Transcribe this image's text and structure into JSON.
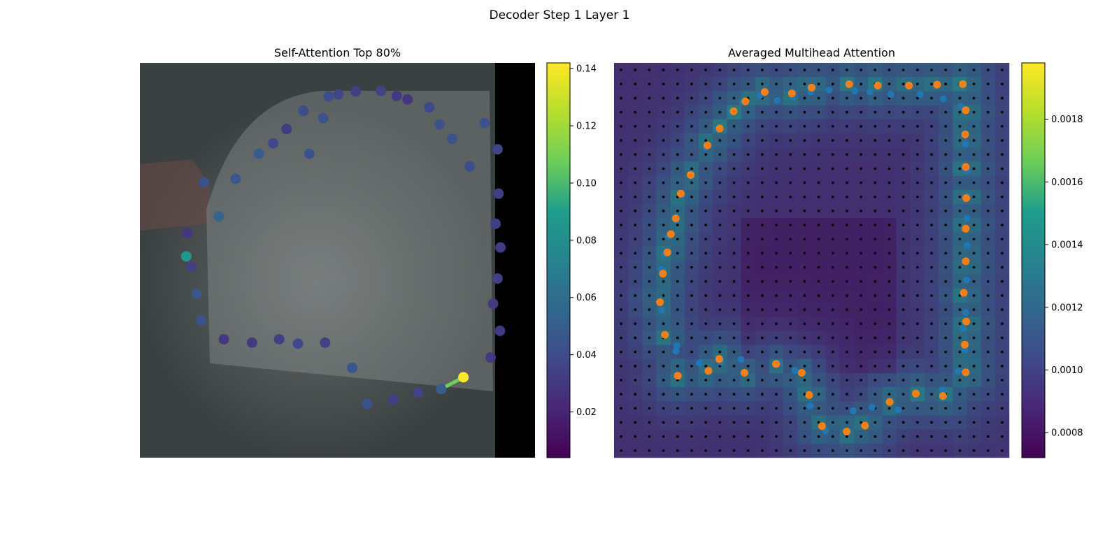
{
  "suptitle": "Decoder Step 1 Layer 1",
  "panels": {
    "left_title": "Self-Attention Top 80%",
    "right_title": "Averaged Multihead Attention"
  },
  "colors": {
    "viridis_stops": [
      "#440154",
      "#482777",
      "#3f4a8a",
      "#31678e",
      "#26838f",
      "#1f9d8a",
      "#6cce5a",
      "#b6de2b",
      "#fee825"
    ],
    "orange_point": "#ff7f0e",
    "blue_point": "#1f77b4",
    "photo_bg": "#3b4140",
    "black_strip": "#000000"
  },
  "chart_data": [
    {
      "type": "scatter",
      "title": "Self-Attention Top 80%",
      "xlim": [
        0,
        800
      ],
      "ylim": [
        800,
        0
      ],
      "colorbar": {
        "min": 0.004,
        "max": 0.142,
        "ticks": [
          0.02,
          0.04,
          0.06,
          0.08,
          0.1,
          0.12,
          0.14
        ],
        "tick_labels": [
          "0.02",
          "0.04",
          "0.06",
          "0.08",
          "0.10",
          "0.12",
          "0.14"
        ]
      },
      "points": [
        {
          "x": 94,
          "y": 392,
          "v": 0.087
        },
        {
          "x": 130,
          "y": 242,
          "v": 0.043
        },
        {
          "x": 160,
          "y": 311,
          "v": 0.054
        },
        {
          "x": 194,
          "y": 235,
          "v": 0.0465
        },
        {
          "x": 241,
          "y": 184,
          "v": 0.0495
        },
        {
          "x": 270,
          "y": 163,
          "v": 0.0375
        },
        {
          "x": 297,
          "y": 134,
          "v": 0.0318
        },
        {
          "x": 331,
          "y": 97,
          "v": 0.0405
        },
        {
          "x": 343,
          "y": 184,
          "v": 0.0432
        },
        {
          "x": 371,
          "y": 112,
          "v": 0.0435
        },
        {
          "x": 382,
          "y": 68,
          "v": 0.0408
        },
        {
          "x": 402,
          "y": 64,
          "v": 0.0365
        },
        {
          "x": 437,
          "y": 58,
          "v": 0.0335
        },
        {
          "x": 488,
          "y": 57,
          "v": 0.0355
        },
        {
          "x": 520,
          "y": 67,
          "v": 0.0302
        },
        {
          "x": 542,
          "y": 74,
          "v": 0.029
        },
        {
          "x": 586,
          "y": 90,
          "v": 0.0382
        },
        {
          "x": 607,
          "y": 125,
          "v": 0.043
        },
        {
          "x": 632,
          "y": 154,
          "v": 0.044
        },
        {
          "x": 698,
          "y": 122,
          "v": 0.0427
        },
        {
          "x": 668,
          "y": 210,
          "v": 0.0398
        },
        {
          "x": 724,
          "y": 175,
          "v": 0.0362
        },
        {
          "x": 726,
          "y": 265,
          "v": 0.0325
        },
        {
          "x": 720,
          "y": 326,
          "v": 0.0337
        },
        {
          "x": 730,
          "y": 374,
          "v": 0.0308
        },
        {
          "x": 724,
          "y": 437,
          "v": 0.033
        },
        {
          "x": 715,
          "y": 488,
          "v": 0.0313
        },
        {
          "x": 729,
          "y": 543,
          "v": 0.0312
        },
        {
          "x": 710,
          "y": 597,
          "v": 0.03
        },
        {
          "x": 655,
          "y": 637,
          "v": 0.142
        },
        {
          "x": 610,
          "y": 661,
          "v": 0.05
        },
        {
          "x": 563,
          "y": 668,
          "v": 0.035
        },
        {
          "x": 513,
          "y": 682,
          "v": 0.0335
        },
        {
          "x": 460,
          "y": 691,
          "v": 0.0445
        },
        {
          "x": 430,
          "y": 618,
          "v": 0.0456
        },
        {
          "x": 375,
          "y": 567,
          "v": 0.0345
        },
        {
          "x": 320,
          "y": 569,
          "v": 0.0378
        },
        {
          "x": 282,
          "y": 560,
          "v": 0.033
        },
        {
          "x": 227,
          "y": 567,
          "v": 0.0312
        },
        {
          "x": 170,
          "y": 560,
          "v": 0.0296
        },
        {
          "x": 124,
          "y": 522,
          "v": 0.044
        },
        {
          "x": 115,
          "y": 468,
          "v": 0.0463
        },
        {
          "x": 104,
          "y": 413,
          "v": 0.033
        },
        {
          "x": 96,
          "y": 345,
          "v": 0.0288
        }
      ],
      "line": {
        "from": [
          610,
          661
        ],
        "to": [
          655,
          637
        ],
        "v": 0.108
      }
    },
    {
      "type": "heatmap",
      "title": "Averaged Multihead Attention",
      "grid": {
        "rows": 28,
        "cols": 28
      },
      "colorbar": {
        "min": 0.00072,
        "max": 0.00198,
        "ticks": [
          0.0008,
          0.001,
          0.0012,
          0.0014,
          0.0016,
          0.0018
        ],
        "tick_labels": [
          "0.0008",
          "0.0010",
          "0.0012",
          "0.0014",
          "0.0016",
          "0.0018"
        ]
      },
      "series": [
        {
          "marker": "orange",
          "points": [
            [
              99,
              427
            ],
            [
              108,
              384
            ],
            [
              115,
              347
            ],
            [
              125,
              315
            ],
            [
              135,
              265
            ],
            [
              155,
              227
            ],
            [
              189,
              167
            ],
            [
              214,
              133
            ],
            [
              242,
              98
            ],
            [
              266,
              78
            ],
            [
              305,
              59
            ],
            [
              360,
              62
            ],
            [
              400,
              50
            ],
            [
              476,
              43
            ],
            [
              534,
              46
            ],
            [
              597,
              46
            ],
            [
              654,
              44
            ],
            [
              706,
              43
            ],
            [
              712,
              96
            ],
            [
              711,
              145
            ],
            [
              712,
              211
            ],
            [
              713,
              274
            ],
            [
              712,
              336
            ],
            [
              712,
              402
            ],
            [
              708,
              466
            ],
            [
              713,
              524
            ],
            [
              710,
              571
            ],
            [
              712,
              627
            ],
            [
              666,
              675
            ],
            [
              611,
              670
            ],
            [
              558,
              687
            ],
            [
              508,
              735
            ],
            [
              471,
              747
            ],
            [
              421,
              736
            ],
            [
              395,
              673
            ],
            [
              380,
              628
            ],
            [
              328,
              610
            ],
            [
              264,
              628
            ],
            [
              213,
              600
            ],
            [
              191,
              624
            ],
            [
              129,
              634
            ],
            [
              103,
              551
            ],
            [
              93,
              485
            ]
          ]
        },
        {
          "marker": "blue",
          "points": [
            [
              97,
              418
            ],
            [
              102,
              389
            ],
            [
              111,
              351
            ],
            [
              126,
              318
            ],
            [
              138,
              268
            ],
            [
              158,
              228
            ],
            [
              186,
              171
            ],
            [
              210,
              135
            ],
            [
              237,
              101
            ],
            [
              260,
              80
            ],
            [
              295,
              66
            ],
            [
              330,
              76
            ],
            [
              361,
              70
            ],
            [
              398,
              59
            ],
            [
              435,
              55
            ],
            [
              488,
              57
            ],
            [
              518,
              59
            ],
            [
              560,
              64
            ],
            [
              620,
              64
            ],
            [
              667,
              73
            ],
            [
              702,
              88
            ],
            [
              712,
              165
            ],
            [
              715,
              218
            ],
            [
              716,
              270
            ],
            [
              715,
              315
            ],
            [
              715,
              370
            ],
            [
              714,
              440
            ],
            [
              712,
              506
            ],
            [
              707,
              539
            ],
            [
              710,
              582
            ],
            [
              697,
              625
            ],
            [
              665,
              663
            ],
            [
              613,
              667
            ],
            [
              575,
              703
            ],
            [
              522,
              698
            ],
            [
              484,
              705
            ],
            [
              428,
              745
            ],
            [
              397,
              695
            ],
            [
              366,
              623
            ],
            [
              333,
              609
            ],
            [
              257,
              601
            ],
            [
              216,
              606
            ],
            [
              173,
              608
            ],
            [
              125,
              584
            ],
            [
              127,
              573
            ],
            [
              96,
              501
            ]
          ]
        }
      ],
      "dot_grid": {
        "rows": 28,
        "cols": 28
      }
    }
  ]
}
